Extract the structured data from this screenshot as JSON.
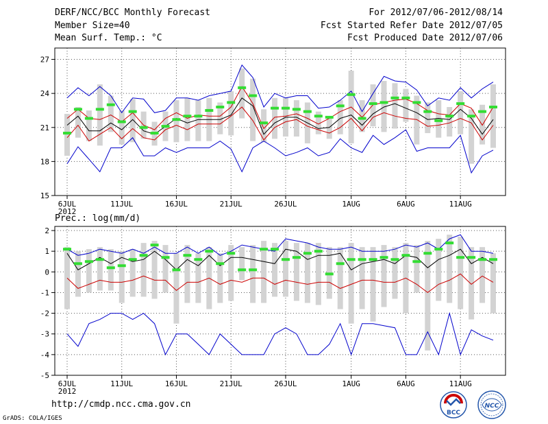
{
  "header": {
    "title": "DERF/NCC/BCC Monthly Forecast",
    "member_size": "Member Size=40",
    "variable": "Mean Surf. Temp.: °C",
    "forecast_period": "For 2012/07/06-2012/08/14",
    "started_date": "Fcst Started Refer Date 2012/07/05",
    "produced_date": "Fcst Produced Date 2012/07/06"
  },
  "footer": {
    "url": "http://cmdp.ncc.cma.gov.cn",
    "credit": "GrADS: COLA/IGES",
    "logo_bcc": "BCC",
    "logo_ncc": "NCC"
  },
  "colors": {
    "ensemble_mean": "#000000",
    "spread": "#cc0000",
    "extremes": "#0000cc",
    "median": "#33dd33",
    "range_bar": "#d3d3d3"
  },
  "chart_data": [
    {
      "type": "line",
      "title": "Mean Surf. Temp.: °C",
      "x_label_year": "2012",
      "x_start": 1,
      "x_end": 40,
      "xticks": [
        {
          "x": 1,
          "label": "6JUL"
        },
        {
          "x": 6,
          "label": "11JUL"
        },
        {
          "x": 11,
          "label": "16JUL"
        },
        {
          "x": 16,
          "label": "21JUL"
        },
        {
          "x": 21,
          "label": "26JUL"
        },
        {
          "x": 27,
          "label": "1AUG"
        },
        {
          "x": 32,
          "label": "6AUG"
        },
        {
          "x": 37,
          "label": "11AUG"
        }
      ],
      "ylim": [
        15,
        28
      ],
      "yticks": [
        15,
        18,
        21,
        24,
        27
      ],
      "series": [
        {
          "name": "max",
          "color": "blue",
          "values": [
            23.6,
            24.5,
            23.8,
            24.6,
            23.8,
            22.3,
            23.6,
            23.5,
            22.3,
            22.5,
            23.6,
            23.6,
            23.4,
            23.8,
            24.0,
            24.2,
            26.5,
            25.4,
            22.8,
            24.0,
            23.6,
            23.8,
            23.8,
            22.7,
            22.8,
            23.4,
            24.2,
            22.4,
            24.0,
            25.5,
            25.1,
            25.0,
            24.3,
            22.9,
            23.6,
            23.4,
            24.5,
            23.6,
            24.4,
            25.0
          ]
        },
        {
          "name": "mean_plus_sd",
          "color": "red",
          "values": [
            21.8,
            22.6,
            21.8,
            21.7,
            22.1,
            21.5,
            22.3,
            21.2,
            20.8,
            21.8,
            22.3,
            21.8,
            22.1,
            22.0,
            22.0,
            22.8,
            24.6,
            23.1,
            20.9,
            21.9,
            22.0,
            22.2,
            21.8,
            21.3,
            21.8,
            22.4,
            22.8,
            21.9,
            23.0,
            23.2,
            23.4,
            23.5,
            23.1,
            22.5,
            22.2,
            22.1,
            23.1,
            22.7,
            21.2,
            22.8
          ]
        },
        {
          "name": "mean",
          "color": "black",
          "values": [
            21.2,
            22.0,
            20.7,
            20.7,
            21.4,
            20.8,
            21.7,
            20.7,
            20.4,
            21.1,
            21.8,
            21.4,
            21.7,
            21.7,
            21.7,
            22.1,
            23.6,
            22.9,
            20.4,
            21.4,
            21.9,
            21.9,
            21.4,
            20.9,
            21.0,
            21.8,
            22.1,
            21.2,
            22.2,
            22.8,
            23.1,
            22.7,
            22.3,
            21.7,
            21.8,
            21.7,
            22.6,
            21.8,
            20.4,
            21.7
          ]
        },
        {
          "name": "mean_minus_sd",
          "color": "red",
          "values": [
            20.1,
            21.2,
            19.8,
            20.4,
            21.0,
            20.0,
            20.9,
            20.1,
            19.9,
            20.8,
            21.2,
            20.8,
            21.3,
            21.3,
            21.3,
            22.0,
            22.8,
            21.6,
            19.9,
            21.0,
            21.5,
            21.7,
            21.1,
            20.8,
            20.5,
            21.0,
            21.8,
            20.7,
            21.9,
            22.3,
            22.0,
            21.8,
            21.7,
            21.1,
            21.2,
            21.4,
            21.8,
            21.4,
            19.9,
            21.2
          ]
        },
        {
          "name": "min",
          "color": "blue",
          "values": [
            17.8,
            19.3,
            18.2,
            17.1,
            19.2,
            19.2,
            20.1,
            18.5,
            18.5,
            19.2,
            18.8,
            19.2,
            19.2,
            19.2,
            19.8,
            19.1,
            17.1,
            19.2,
            19.8,
            19.2,
            18.5,
            18.8,
            19.2,
            18.5,
            18.8,
            20.0,
            19.2,
            18.8,
            20.3,
            19.5,
            20.1,
            20.8,
            18.9,
            19.2,
            19.2,
            19.2,
            20.3,
            17.0,
            18.5,
            19.0
          ]
        },
        {
          "name": "median",
          "color": "green",
          "values": [
            20.5,
            22.6,
            21.8,
            22.6,
            23.0,
            21.5,
            22.4,
            21.0,
            20.5,
            21.1,
            21.7,
            22.0,
            22.0,
            22.5,
            22.8,
            23.2,
            24.5,
            23.8,
            21.4,
            22.7,
            22.7,
            22.6,
            22.4,
            22.0,
            21.9,
            22.9,
            23.9,
            21.8,
            23.1,
            23.2,
            23.6,
            23.6,
            23.2,
            22.4,
            21.6,
            22.0,
            23.1,
            22.0,
            22.4,
            22.8
          ]
        },
        {
          "name": "range_top",
          "color": "gray",
          "values": [
            22.2,
            22.8,
            22.5,
            24.8,
            23.8,
            22.5,
            23.5,
            22.4,
            21.5,
            22.4,
            23.4,
            23.6,
            23.4,
            23.6,
            23.2,
            24.2,
            26.2,
            25.3,
            22.6,
            23.6,
            23.6,
            23.4,
            23.2,
            22.4,
            22.0,
            23.4,
            26.0,
            23.4,
            24.8,
            25.1,
            24.9,
            24.4,
            23.8,
            23.2,
            23.4,
            22.8,
            24.2,
            22.6,
            23.0,
            24.8
          ]
        },
        {
          "name": "range_bottom",
          "color": "gray",
          "values": [
            18.5,
            20.1,
            19.8,
            19.4,
            20.6,
            19.5,
            19.7,
            20.0,
            19.4,
            19.8,
            19.7,
            19.8,
            19.8,
            19.8,
            20.4,
            20.3,
            21.8,
            19.8,
            19.7,
            20.0,
            20.2,
            20.2,
            19.6,
            20.4,
            20.0,
            20.4,
            19.6,
            20.6,
            21.1,
            20.6,
            20.9,
            21.5,
            19.5,
            20.5,
            20.1,
            20.2,
            20.4,
            17.8,
            19.5,
            19.2
          ]
        }
      ]
    },
    {
      "type": "line",
      "title": "Prec.: log(mm/d)",
      "x_label_year": "2012",
      "x_start": 1,
      "x_end": 40,
      "xticks": [
        {
          "x": 1,
          "label": "6JUL"
        },
        {
          "x": 6,
          "label": "11JUL"
        },
        {
          "x": 11,
          "label": "16JUL"
        },
        {
          "x": 16,
          "label": "21JUL"
        },
        {
          "x": 21,
          "label": "26JUL"
        },
        {
          "x": 27,
          "label": "1AUG"
        },
        {
          "x": 32,
          "label": "6AUG"
        },
        {
          "x": 37,
          "label": "11AUG"
        }
      ],
      "ylim": [
        -5,
        2.2
      ],
      "yticks": [
        -5,
        -4,
        -3,
        -2,
        -1,
        0,
        1,
        2
      ],
      "series": [
        {
          "name": "max",
          "color": "blue",
          "values": [
            1.1,
            0.8,
            0.9,
            1.1,
            1.0,
            0.9,
            1.1,
            0.9,
            1.2,
            0.9,
            0.9,
            1.2,
            0.9,
            1.2,
            0.8,
            1.0,
            1.3,
            1.2,
            1.1,
            1.0,
            1.6,
            1.5,
            1.4,
            1.2,
            1.1,
            1.1,
            1.2,
            1.0,
            1.0,
            1.0,
            1.1,
            1.3,
            1.2,
            1.4,
            1.1,
            1.6,
            1.8,
            1.0,
            1.0,
            0.9
          ]
        },
        {
          "name": "mean",
          "color": "black",
          "values": [
            0.9,
            0.1,
            0.4,
            0.7,
            0.4,
            0.7,
            0.5,
            0.6,
            1.0,
            0.6,
            0.1,
            0.6,
            0.3,
            0.8,
            0.3,
            0.7,
            0.7,
            0.6,
            0.5,
            0.4,
            1.1,
            1.0,
            0.6,
            0.8,
            0.8,
            0.9,
            0.1,
            0.4,
            0.5,
            0.6,
            0.4,
            0.8,
            0.7,
            0.2,
            0.6,
            0.8,
            1.1,
            0.4,
            0.7,
            0.4
          ]
        },
        {
          "name": "mean_minus_sd",
          "color": "red",
          "values": [
            -0.3,
            -0.8,
            -0.6,
            -0.4,
            -0.5,
            -0.5,
            -0.4,
            -0.2,
            -0.4,
            -0.4,
            -0.9,
            -0.5,
            -0.5,
            -0.3,
            -0.6,
            -0.4,
            -0.5,
            -0.3,
            -0.3,
            -0.6,
            -0.4,
            -0.5,
            -0.6,
            -0.5,
            -0.5,
            -0.8,
            -0.6,
            -0.4,
            -0.4,
            -0.5,
            -0.5,
            -0.3,
            -0.6,
            -1.0,
            -0.6,
            -0.4,
            -0.1,
            -0.6,
            -0.2,
            -0.5
          ]
        },
        {
          "name": "min",
          "color": "blue",
          "values": [
            -3.0,
            -3.6,
            -2.5,
            -2.3,
            -2.0,
            -2.0,
            -2.3,
            -2.0,
            -2.5,
            -4.0,
            -3.0,
            -3.0,
            -3.5,
            -4.0,
            -3.0,
            -3.5,
            -4.0,
            -4.0,
            -4.0,
            -3.0,
            -2.7,
            -3.0,
            -4.0,
            -4.0,
            -3.5,
            -2.5,
            -4.0,
            -2.5,
            -2.5,
            -2.6,
            -2.7,
            -4.0,
            -4.0,
            -2.9,
            -4.0,
            -2.0,
            -4.0,
            -2.8,
            -3.1,
            -3.3
          ]
        },
        {
          "name": "median",
          "color": "green",
          "values": [
            1.1,
            0.4,
            0.5,
            0.6,
            0.2,
            0.3,
            0.6,
            0.8,
            1.3,
            0.7,
            0.1,
            0.8,
            0.6,
            1.0,
            0.4,
            0.9,
            0.1,
            0.1,
            1.1,
            1.1,
            0.6,
            0.7,
            0.9,
            1.0,
            -0.1,
            0.4,
            0.6,
            0.6,
            0.6,
            0.7,
            0.6,
            0.8,
            0.5,
            0.9,
            1.1,
            1.4,
            0.7,
            0.7,
            0.6,
            0.6
          ]
        },
        {
          "name": "range_top",
          "color": "gray",
          "values": [
            1.2,
            1.0,
            1.1,
            1.2,
            1.1,
            1.0,
            1.1,
            1.4,
            1.5,
            1.3,
            0.9,
            1.3,
            0.9,
            1.2,
            0.9,
            1.3,
            1.2,
            1.3,
            1.5,
            1.4,
            1.5,
            1.4,
            1.4,
            1.4,
            1.2,
            1.2,
            1.4,
            1.2,
            1.2,
            1.3,
            1.2,
            1.4,
            1.3,
            1.5,
            1.6,
            1.8,
            1.7,
            1.2,
            1.2,
            0.9
          ]
        },
        {
          "name": "range_bottom",
          "color": "gray",
          "values": [
            -1.8,
            -1.2,
            -1.0,
            -0.9,
            -0.9,
            -1.5,
            -1.2,
            -1.2,
            -1.3,
            -1.0,
            -2.5,
            -1.5,
            -1.5,
            -1.8,
            -1.5,
            -1.4,
            -0.4,
            -1.5,
            -1.5,
            -1.2,
            -1.2,
            -1.4,
            -1.5,
            -1.6,
            -1.3,
            -1.8,
            -2.5,
            -1.8,
            -2.4,
            -1.7,
            -1.3,
            -2.0,
            -1.0,
            -3.8,
            -1.4,
            -1.5,
            -1.8,
            -2.3,
            -1.5,
            -2.0
          ]
        }
      ]
    }
  ]
}
